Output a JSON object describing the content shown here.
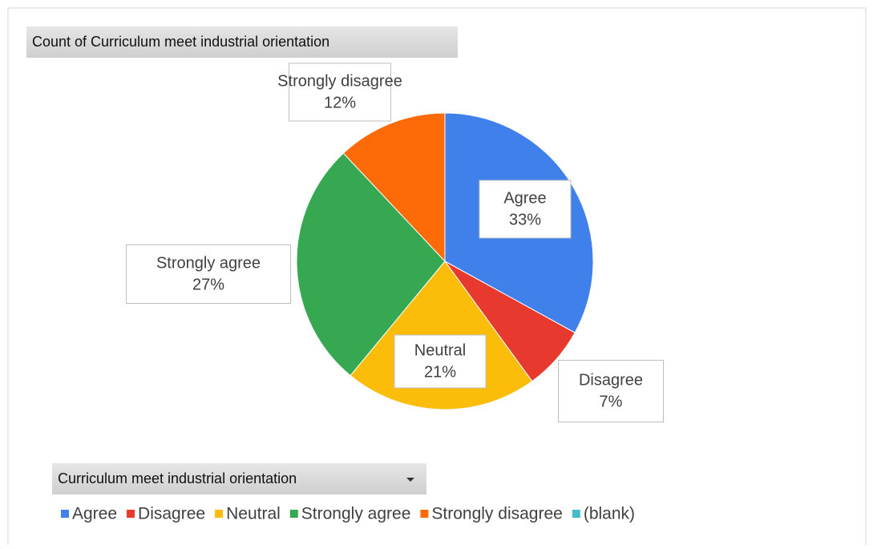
{
  "chart_data": {
    "type": "pie",
    "title": "Count of Curriculum meet industrial orientation",
    "filter_label": "Curriculum meet industrial orientation",
    "categories": [
      "Agree",
      "Disagree",
      "Neutral",
      "Strongly agree",
      "Strongly disagree",
      "(blank)"
    ],
    "values": [
      33,
      7,
      21,
      27,
      12,
      0
    ],
    "value_labels": [
      "33%",
      "7%",
      "21%",
      "27%",
      "12%",
      null
    ],
    "colors": [
      "#3f80ea",
      "#e8392e",
      "#fbbd0a",
      "#36a852",
      "#fd6a08",
      "#46bdc6"
    ],
    "legend": "bottom"
  }
}
